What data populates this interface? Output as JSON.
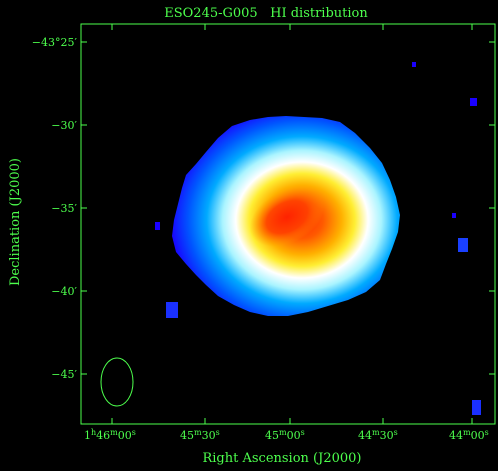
{
  "title": "ESO245-G005   HI distribution",
  "colors": {
    "frame": "#4dff4d",
    "background": "#000000",
    "map_gradient": [
      "#1a00ff",
      "#0055ff",
      "#00aaff",
      "#aaf4ff",
      "#ffffff",
      "#ffee33",
      "#ff8800",
      "#ff2a00"
    ]
  },
  "axes": {
    "x_label": "Right Ascension (J2000)",
    "y_label": "Declination (J2000)",
    "x_ticks": [
      {
        "h": "1",
        "m": "46",
        "s": "00"
      },
      {
        "h": "",
        "m": "45",
        "s": "30"
      },
      {
        "h": "",
        "m": "45",
        "s": "00"
      },
      {
        "h": "",
        "m": "44",
        "s": "30"
      },
      {
        "h": "",
        "m": "44",
        "s": "00"
      }
    ],
    "y_ticks": [
      "−43°25′",
      "−30′",
      "−35′",
      "−40′",
      "−45′"
    ]
  },
  "beam": "synthesized-beam-ellipse"
}
